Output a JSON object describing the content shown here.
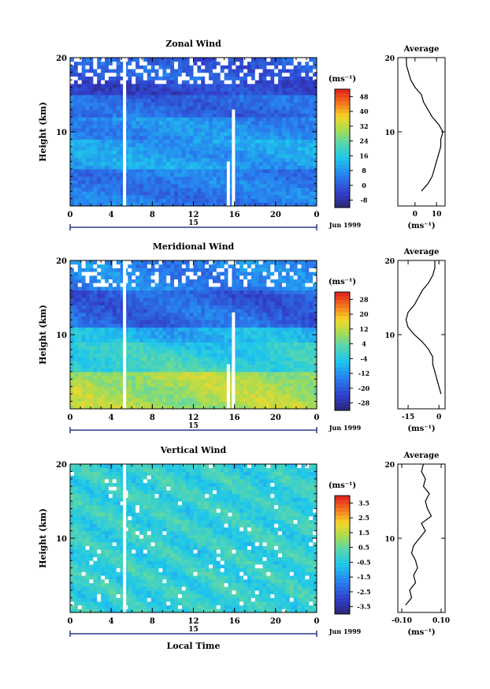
{
  "colors": {
    "background": "#ffffff",
    "axis": "#000000",
    "gap": "#ffffff"
  },
  "colormap": "blue-cyan-green-yellow-orange-red (jet-like)",
  "chart_data": [
    {
      "type": "heatmap",
      "title": "Zonal Wind",
      "xlabel": "",
      "ylabel": "Height (km)",
      "xticks": [
        "0",
        "4",
        "8",
        "12",
        "16",
        "20",
        "0"
      ],
      "yticks": [
        "10",
        "20"
      ],
      "ylim": [
        0,
        20
      ],
      "x_hours": [
        0,
        4,
        8,
        12,
        16,
        20,
        24
      ],
      "date_marker": "15",
      "date_label": "Jun 1999",
      "colorbar": {
        "unit_label": "(ms⁻¹)",
        "tick_labels": [
          "48",
          "40",
          "32",
          "24",
          "16",
          "8",
          "0",
          "-8"
        ],
        "range": [
          -12,
          52
        ]
      },
      "data_gaps_hours": [
        5.3,
        15.9,
        15.4
      ],
      "profile": {
        "title": "Average",
        "xlabel": "(ms⁻¹)",
        "xticks": [
          "0",
          "10"
        ],
        "yticks": [
          "10",
          "20"
        ],
        "xlim": [
          -8,
          14
        ],
        "heights_km": [
          2,
          3,
          4,
          5,
          6,
          7,
          8,
          9,
          10,
          11,
          12,
          13,
          14,
          15,
          16,
          17,
          18,
          19,
          20
        ],
        "values": [
          3,
          6,
          8,
          9,
          10,
          11,
          12,
          12,
          13,
          11,
          8,
          6,
          4,
          3,
          0,
          -2,
          -3,
          -4,
          -4
        ]
      }
    },
    {
      "type": "heatmap",
      "title": "Meridional Wind",
      "xlabel": "",
      "ylabel": "Height (km)",
      "xticks": [
        "0",
        "4",
        "8",
        "12",
        "16",
        "20",
        "0"
      ],
      "yticks": [
        "10",
        "20"
      ],
      "ylim": [
        0,
        20
      ],
      "x_hours": [
        0,
        4,
        8,
        12,
        16,
        20,
        24
      ],
      "date_marker": "15",
      "date_label": "Jun 1999",
      "colorbar": {
        "unit_label": "(ms⁻¹)",
        "tick_labels": [
          "28",
          "20",
          "12",
          "4",
          "-4",
          "-12",
          "-20",
          "-28"
        ],
        "range": [
          -32,
          32
        ]
      },
      "data_gaps_hours": [
        5.3,
        15.9,
        15.4
      ],
      "profile": {
        "title": "Average",
        "xlabel": "(ms⁻¹)",
        "xticks": [
          "-15",
          "0"
        ],
        "yticks": [
          "10",
          "20"
        ],
        "xlim": [
          -20,
          3
        ],
        "heights_km": [
          2,
          3,
          4,
          5,
          6,
          7,
          8,
          9,
          10,
          11,
          12,
          13,
          14,
          15,
          16,
          17,
          18,
          19,
          20
        ],
        "values": [
          1,
          0,
          -1,
          -2,
          -3,
          -3,
          -5,
          -8,
          -12,
          -15,
          -16,
          -15,
          -12,
          -10,
          -8,
          -5,
          -3,
          -2,
          -2
        ]
      }
    },
    {
      "type": "heatmap",
      "title": "Vertical Wind",
      "xlabel": "Local Time",
      "ylabel": "Height (km)",
      "xticks": [
        "0",
        "4",
        "8",
        "12",
        "16",
        "20",
        "0"
      ],
      "yticks": [
        "10",
        "20"
      ],
      "ylim": [
        0,
        20
      ],
      "x_hours": [
        0,
        4,
        8,
        12,
        16,
        20,
        24
      ],
      "date_marker": "15",
      "date_label": "Jun 1999",
      "colorbar": {
        "unit_label": "(ms⁻¹)",
        "tick_labels": [
          "3.5",
          "2.5",
          "1.5",
          "0.5",
          "-0.5",
          "-1.5",
          "-2.5",
          "-3.5"
        ],
        "range": [
          -4,
          4
        ]
      },
      "data_gaps_hours": [
        5.3
      ],
      "profile": {
        "title": "Average",
        "xlabel": "(ms⁻¹)",
        "xticks": [
          "-0.10",
          "0.10"
        ],
        "yticks": [
          "10",
          "20"
        ],
        "xlim": [
          -0.12,
          0.12
        ],
        "heights_km": [
          1,
          2,
          3,
          4,
          5,
          6,
          7,
          8,
          9,
          10,
          11,
          12,
          13,
          14,
          15,
          16,
          17,
          18,
          19,
          20
        ],
        "values": [
          -0.08,
          -0.05,
          -0.06,
          -0.03,
          -0.04,
          -0.02,
          -0.03,
          -0.05,
          -0.04,
          -0.01,
          0.02,
          0.0,
          0.05,
          0.03,
          0.02,
          0.04,
          0.01,
          0.02,
          0.0,
          0.01
        ]
      }
    }
  ]
}
